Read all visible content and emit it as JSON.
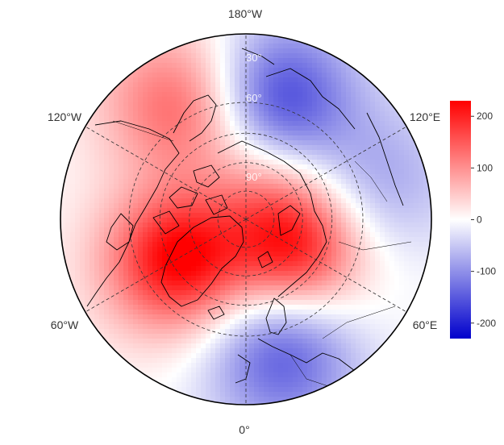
{
  "map": {
    "projection": "north-polar-stereographic",
    "longitude_labels": {
      "top": "180°W",
      "upper_left": "120°W",
      "upper_right": "120°E",
      "lower_left": "60°W",
      "lower_right": "60°E",
      "bottom": "0°"
    },
    "latitude_labels": [
      "30°",
      "60°",
      "90°"
    ],
    "latitude_circles_deg": [
      50,
      60,
      70,
      80
    ],
    "meridians_deg": [
      0,
      60,
      120,
      180,
      240,
      300
    ]
  },
  "colorbar": {
    "ticks": [
      "200",
      "100",
      "0",
      "-100",
      "-200"
    ],
    "tick_values": [
      200,
      100,
      0,
      -100,
      -200
    ],
    "range": [
      -230,
      230
    ],
    "colors": {
      "max": "#ff0000",
      "mid": "#ffffff",
      "min": "#0000cc"
    }
  },
  "field": {
    "description_of_pattern": "anomaly",
    "centers": [
      {
        "lat": 62,
        "lon": -60,
        "value": 230
      },
      {
        "lat": 70,
        "lon": 60,
        "value": 200
      },
      {
        "lat": 45,
        "lon": -150,
        "value": 140
      },
      {
        "lat": 43,
        "lon": 15,
        "value": -150
      },
      {
        "lat": 47,
        "lon": 165,
        "value": -170
      },
      {
        "lat": 43,
        "lon": 105,
        "value": -80
      },
      {
        "lat": 80,
        "lon": 160,
        "value": 60
      }
    ]
  }
}
